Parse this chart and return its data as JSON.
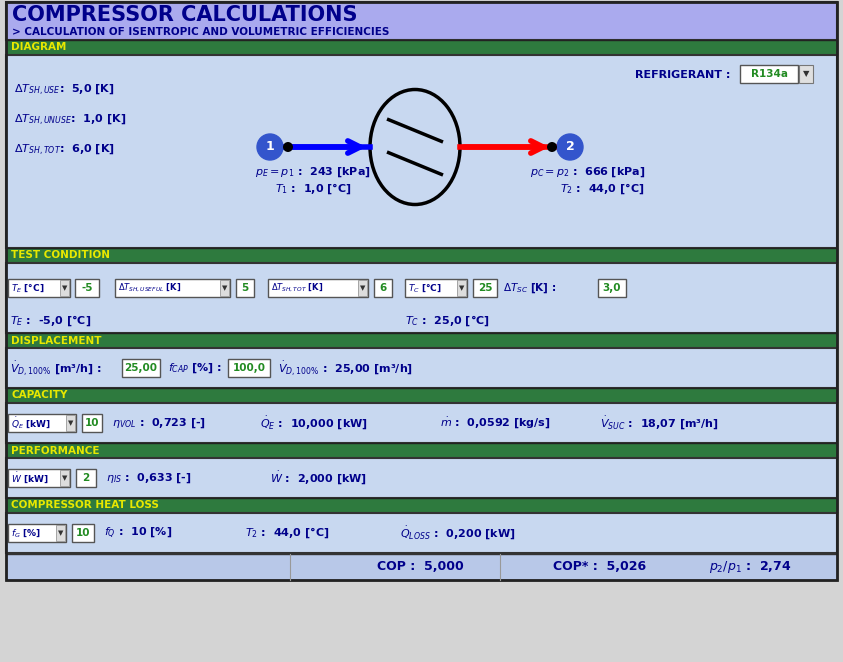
{
  "title": "COMPRESSOR CALCULATIONS",
  "subtitle": "> CALCULATION OF ISENTROPIC AND VOLUMETRIC EFFICIENCIES",
  "bg_main": "#aaaaee",
  "bg_light": "#c8d8f0",
  "bg_section": "#2e7a3e",
  "section_text_color": "#e8e800",
  "dark_blue": "#00008B",
  "green_val": "#228B22",
  "diagram": {
    "refrigerant": "R134a"
  },
  "footer_bg": "#b8c8e8"
}
